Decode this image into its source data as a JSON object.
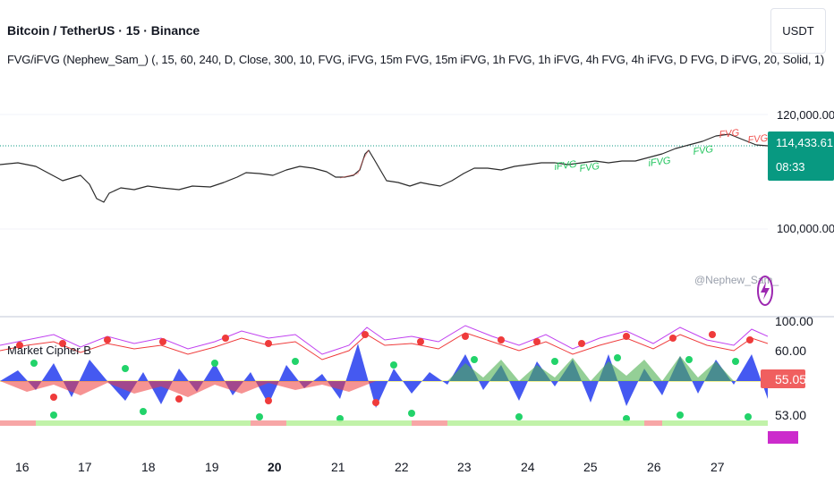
{
  "header": {
    "symbol_title": "Bitcoin / TetherUS · 15 · Binance",
    "indicator_params": "FVG/iFVG (Nephew_Sam_) (, 15, 60, 240, D, Close, 300, 10, FVG, iFVG, 15m FVG, 15m iFVG, 1h FVG, 1h iFVG, 4h FVG, 4h iFVG, D FVG, D iFVG, 20, Solid, 1)"
  },
  "currency": "USDT",
  "price_axis": {
    "ticks": [
      "120,000.00",
      "100,000.00"
    ],
    "last_price": "114,433.61",
    "countdown": "08:33",
    "last_price_color": "#089981"
  },
  "fvg_labels": {
    "red": [
      "FVG",
      "FVG"
    ],
    "green": [
      "iFVG",
      "FVG",
      "iFVG",
      "FVG"
    ]
  },
  "watermark": "@Nephew_Sam_",
  "oscillator": {
    "name": "Market Cipher B",
    "ticks": [
      "100.00",
      "60.00",
      "53.00"
    ],
    "current_value": "55.05",
    "current_value_color": "#f05f5f"
  },
  "time_axis": {
    "labels": [
      "16",
      "17",
      "18",
      "19",
      "20",
      "21",
      "22",
      "23",
      "24",
      "25",
      "26",
      "27"
    ],
    "bold_label": "20"
  }
}
